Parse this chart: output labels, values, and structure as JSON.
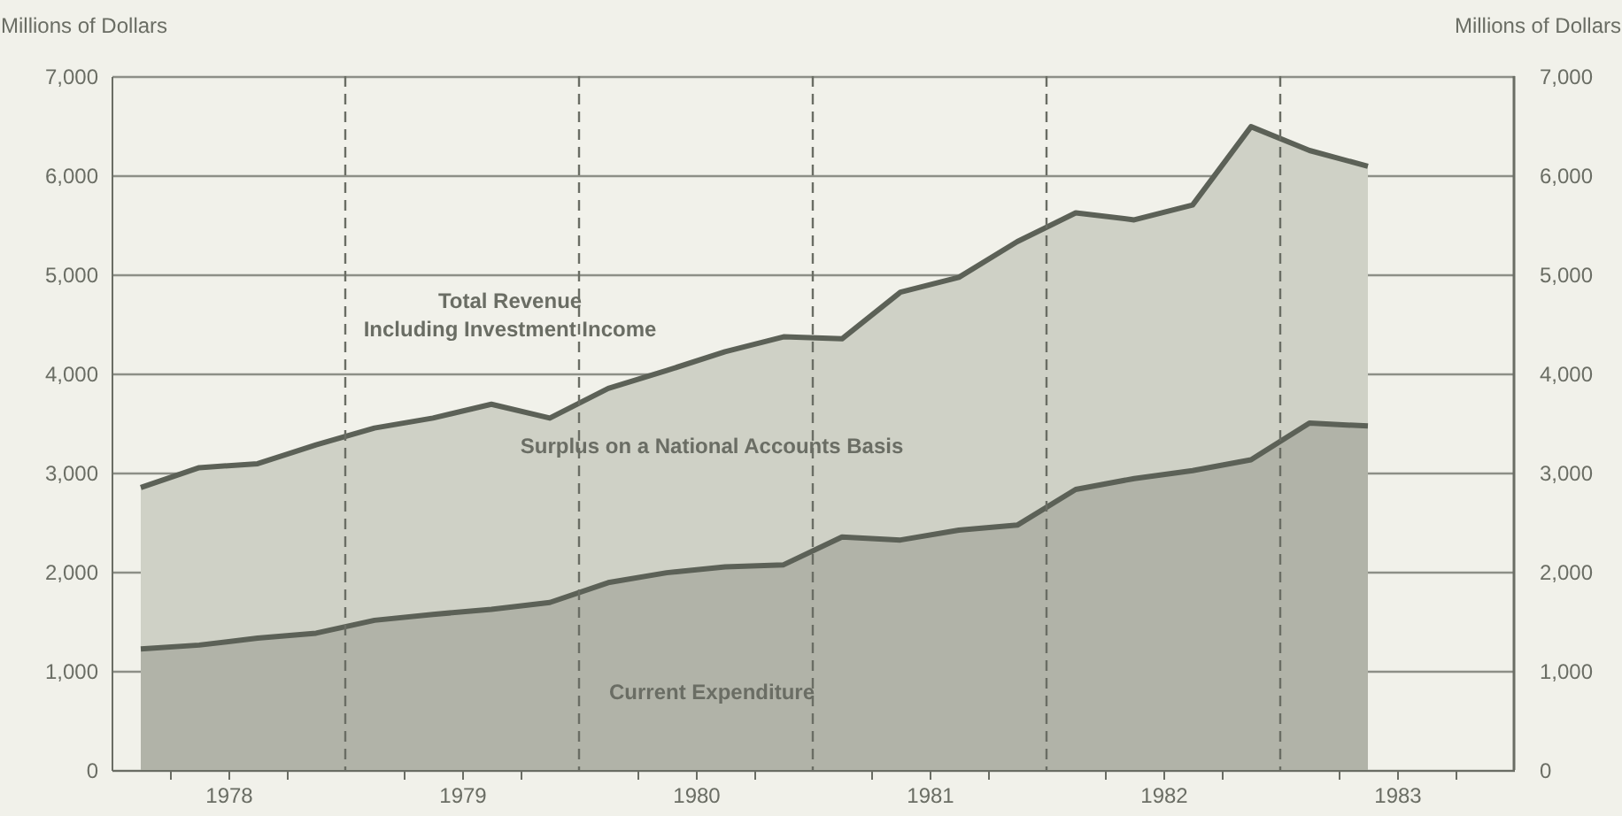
{
  "chart_data": {
    "type": "area",
    "ylabel": "Millions of Dollars",
    "y2label": "Millions of Dollars",
    "x": [
      1978.125,
      1978.375,
      1978.625,
      1978.875,
      1979.125,
      1979.375,
      1979.625,
      1979.875,
      1980.125,
      1980.375,
      1980.625,
      1980.875,
      1981.125,
      1981.375,
      1981.625,
      1981.875,
      1982.125,
      1982.375,
      1982.625,
      1982.875,
      1983.125,
      1983.375
    ],
    "series": [
      {
        "name": "Total Revenue\nIncluding Investment Income",
        "color": "#cfd1c6",
        "values": [
          2850,
          3050,
          3090,
          3280,
          3450,
          3550,
          3690,
          3550,
          3850,
          4030,
          4220,
          4370,
          4350,
          4820,
          4970,
          5330,
          5620,
          5550,
          5700,
          6490,
          6250,
          6090
        ]
      },
      {
        "name": "Current Expenditure",
        "color": "#b1b3a8",
        "values": [
          1220,
          1260,
          1330,
          1380,
          1510,
          1570,
          1620,
          1690,
          1890,
          1990,
          2050,
          2070,
          2350,
          2320,
          2420,
          2470,
          2830,
          2940,
          3020,
          3130,
          3500,
          3470
        ]
      }
    ],
    "annotations": [
      "Surplus on a National Accounts Basis"
    ],
    "xlim": [
      1978,
      1984
    ],
    "xticks": [
      {
        "value": 1978.25,
        "label": null
      },
      {
        "value": 1978.5,
        "label": "1978"
      },
      {
        "value": 1978.75,
        "label": null
      },
      {
        "value": 1979.25,
        "label": null
      },
      {
        "value": 1979.5,
        "label": "1979"
      },
      {
        "value": 1979.75,
        "label": null
      },
      {
        "value": 1980.25,
        "label": null
      },
      {
        "value": 1980.5,
        "label": "1980"
      },
      {
        "value": 1980.75,
        "label": null
      },
      {
        "value": 1981.25,
        "label": null
      },
      {
        "value": 1981.5,
        "label": "1981"
      },
      {
        "value": 1981.75,
        "label": null
      },
      {
        "value": 1982.25,
        "label": null
      },
      {
        "value": 1982.5,
        "label": "1982"
      },
      {
        "value": 1982.75,
        "label": null
      },
      {
        "value": 1983.25,
        "label": null
      },
      {
        "value": 1983.5,
        "label": "1983"
      },
      {
        "value": 1983.75,
        "label": null
      }
    ],
    "ylim": [
      0,
      7000
    ],
    "yticks": [
      {
        "value": 0,
        "label": "0"
      },
      {
        "value": 1000,
        "label": "1,000"
      },
      {
        "value": 2000,
        "label": "2,000"
      },
      {
        "value": 3000,
        "label": "3,000"
      },
      {
        "value": 4000,
        "label": "4,000"
      },
      {
        "value": 5000,
        "label": "5,000"
      },
      {
        "value": 6000,
        "label": "6,000"
      },
      {
        "value": 7000,
        "label": "7,000"
      }
    ],
    "y2lim": [
      0,
      7000
    ],
    "y2ticks": [
      {
        "value": 0,
        "label": "0"
      },
      {
        "value": 1000,
        "label": "1,000"
      },
      {
        "value": 2000,
        "label": "2,000"
      },
      {
        "value": 3000,
        "label": "3,000"
      },
      {
        "value": 4000,
        "label": "4,000"
      },
      {
        "value": 5000,
        "label": "5,000"
      },
      {
        "value": 6000,
        "label": "6,000"
      },
      {
        "value": 7000,
        "label": "7,000"
      }
    ],
    "ref_lines": [
      {
        "axis": "x",
        "value": 1979,
        "line_style": "dashed"
      },
      {
        "axis": "x",
        "value": 1980,
        "line_style": "dashed"
      },
      {
        "axis": "x",
        "value": 1981,
        "line_style": "dashed"
      },
      {
        "axis": "x",
        "value": 1982,
        "line_style": "dashed"
      },
      {
        "axis": "x",
        "value": 1983,
        "line_style": "dashed"
      }
    ],
    "grid": "y",
    "marker": "none",
    "line_style": "solid"
  }
}
